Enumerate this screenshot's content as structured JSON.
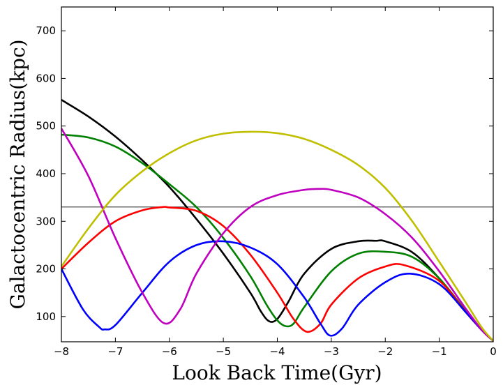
{
  "chart_data": {
    "type": "line",
    "xlabel": "Look Back Time(Gyr)",
    "ylabel": "Galactocentric Radius(kpc)",
    "xlim": [
      -8,
      0
    ],
    "ylim": [
      47,
      750
    ],
    "xticks": [
      -8,
      -7,
      -6,
      -5,
      -4,
      -3,
      -2,
      -1,
      0
    ],
    "xtick_labels": [
      "−8",
      "−7",
      "−6",
      "−5",
      "−4",
      "−3",
      "−2",
      "−1",
      "0"
    ],
    "yticks": [
      100,
      200,
      300,
      400,
      500,
      600,
      700
    ],
    "ytick_labels": [
      "100",
      "200",
      "300",
      "400",
      "500",
      "600",
      "700"
    ],
    "grid": false,
    "reference_line": {
      "y": 330,
      "color": "#444444"
    },
    "series": [
      {
        "color": "#000000",
        "x": [
          -8,
          -7.5,
          -7,
          -6.5,
          -6,
          -5.5,
          -5,
          -4.5,
          -4.3,
          -4.15,
          -4.0,
          -3.8,
          -3.5,
          -3.0,
          -2.5,
          -2.17,
          -2.0,
          -1.5,
          -1.0,
          -0.5,
          -0.2,
          0
        ],
        "y": [
          555,
          520,
          478,
          428,
          372,
          305,
          232,
          150,
          110,
          90,
          95,
          130,
          190,
          242,
          258,
          259,
          258,
          235,
          180,
          110,
          70,
          49
        ]
      },
      {
        "color": "#008000",
        "x": [
          -8,
          -7.5,
          -7,
          -6.5,
          -6,
          -5.5,
          -5,
          -4.5,
          -4.2,
          -4.0,
          -3.85,
          -3.7,
          -3.5,
          -3.0,
          -2.5,
          -2.0,
          -1.5,
          -1.0,
          -0.5,
          -0.2,
          0
        ],
        "y": [
          482,
          476,
          457,
          422,
          378,
          330,
          265,
          185,
          125,
          92,
          80,
          85,
          120,
          195,
          232,
          236,
          225,
          180,
          110,
          70,
          49
        ]
      },
      {
        "color": "#ff0000",
        "x": [
          -8,
          -7.5,
          -7,
          -6.5,
          -6.12,
          -6,
          -5.5,
          -5,
          -4.5,
          -4.0,
          -3.7,
          -3.45,
          -3.2,
          -3.0,
          -2.5,
          -2.0,
          -1.65,
          -1.0,
          -0.5,
          -0.2,
          0
        ],
        "y": [
          200,
          255,
          300,
          323,
          330,
          329,
          322,
          290,
          230,
          150,
          95,
          68,
          85,
          125,
          180,
          205,
          208,
          175,
          108,
          70,
          49
        ]
      },
      {
        "color": "#0000ff",
        "x": [
          -8,
          -7.6,
          -7.3,
          -7.2,
          -7.0,
          -6.5,
          -6.0,
          -5.5,
          -5.0,
          -4.5,
          -4.0,
          -3.5,
          -3.2,
          -3.02,
          -2.8,
          -2.5,
          -2.0,
          -1.55,
          -1.0,
          -0.5,
          -0.2,
          0
        ],
        "y": [
          200,
          115,
          78,
          73,
          82,
          150,
          215,
          250,
          258,
          245,
          210,
          140,
          85,
          60,
          75,
          125,
          172,
          190,
          168,
          108,
          70,
          49
        ]
      },
      {
        "color": "#bf00bf",
        "x": [
          -8,
          -7.5,
          -7,
          -6.5,
          -6.1,
          -5.8,
          -5.5,
          -5,
          -4.5,
          -4,
          -3.5,
          -3.2,
          -3.0,
          -2.5,
          -2.0,
          -1.5,
          -1.0,
          -0.5,
          -0.2,
          0
        ],
        "y": [
          495,
          395,
          265,
          150,
          86,
          115,
          190,
          275,
          330,
          355,
          366,
          368,
          366,
          350,
          315,
          265,
          195,
          115,
          70,
          49
        ]
      },
      {
        "color": "#bfbf00",
        "x": [
          -8,
          -7.5,
          -7,
          -6.5,
          -6,
          -5.5,
          -5,
          -4.5,
          -4,
          -3.5,
          -3,
          -2.5,
          -2,
          -1.5,
          -1,
          -0.5,
          -0.2,
          0
        ],
        "y": [
          205,
          285,
          355,
          405,
          443,
          470,
          484,
          488,
          485,
          473,
          450,
          418,
          370,
          300,
          215,
          128,
          75,
          49
        ]
      }
    ]
  }
}
